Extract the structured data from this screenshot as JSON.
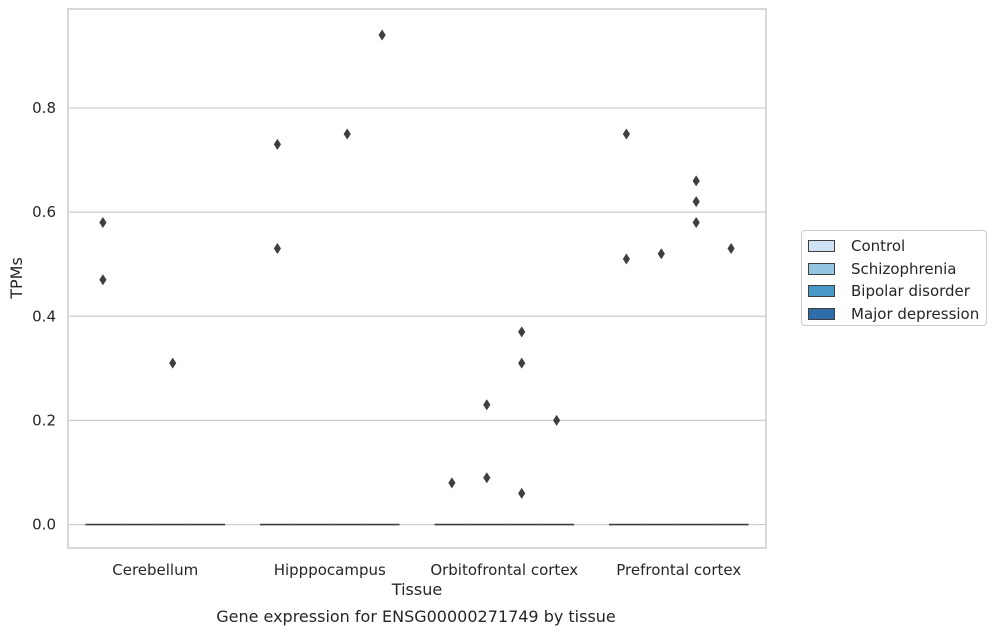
{
  "chart_data": {
    "type": "box",
    "caption": "Gene expression for ENSG00000271749 by tissue",
    "xlabel": "Tissue",
    "ylabel": "TPMs",
    "categories": [
      "Cerebellum",
      "Hipppocampus",
      "Orbitofrontal cortex",
      "Prefrontal cortex"
    ],
    "y_ticks": [
      "0.0",
      "0.2",
      "0.4",
      "0.6",
      "0.8"
    ],
    "y_tick_values": [
      0.0,
      0.2,
      0.4,
      0.6,
      0.8
    ],
    "ylim": [
      -0.045,
      0.99
    ],
    "grid": "horizontal",
    "legend_position": "right",
    "median": 0.0,
    "series": [
      {
        "name": "Control",
        "color": "#cfe1f2",
        "outliers": [
          [
            0,
            0.58
          ],
          [
            0,
            0.47
          ],
          [
            1,
            0.73
          ],
          [
            1,
            0.53
          ],
          [
            2,
            0.08
          ],
          [
            3,
            0.75
          ],
          [
            3,
            0.51
          ]
        ]
      },
      {
        "name": "Schizophrenia",
        "color": "#94c4df",
        "outliers": [
          [
            2,
            0.23
          ],
          [
            2,
            0.09
          ],
          [
            3,
            0.52
          ]
        ]
      },
      {
        "name": "Bipolar disorder",
        "color": "#4a98c9",
        "outliers": [
          [
            0,
            0.31
          ],
          [
            1,
            0.75
          ],
          [
            2,
            0.37
          ],
          [
            2,
            0.31
          ],
          [
            2,
            0.06
          ],
          [
            3,
            0.62
          ],
          [
            3,
            0.58
          ],
          [
            3,
            0.66
          ]
        ]
      },
      {
        "name": "Major depression",
        "color": "#2e6ea8",
        "outliers": [
          [
            1,
            0.94
          ],
          [
            2,
            0.2
          ],
          [
            3,
            0.53
          ]
        ]
      }
    ]
  }
}
